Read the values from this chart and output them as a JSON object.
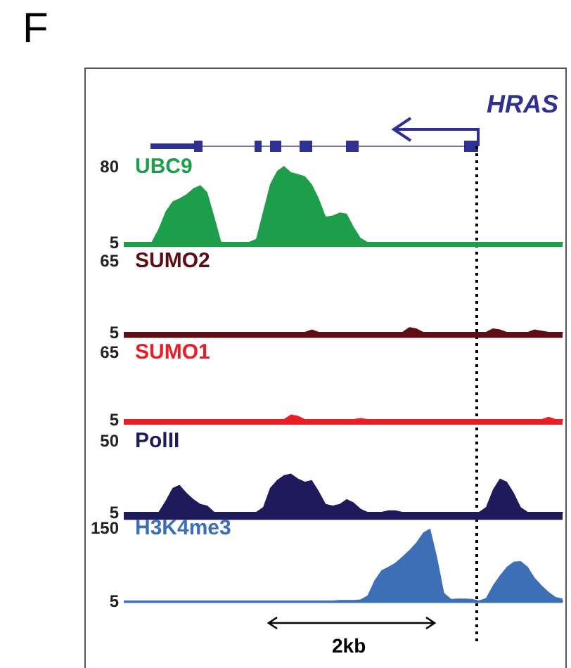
{
  "chart_data": [
    {
      "type": "area",
      "title": "UBC9",
      "color": "#1e9e4a",
      "ylim": [
        5,
        80
      ],
      "yticks": [
        5,
        80
      ],
      "tick_labels": "y",
      "annotations": [
        "F",
        "HRAS"
      ],
      "categories": [
        null,
        null,
        null,
        null,
        null,
        null,
        null,
        null,
        null,
        null,
        null,
        null,
        null,
        null,
        null,
        null,
        null,
        null,
        null,
        null,
        null,
        null,
        null,
        null,
        null,
        null,
        null,
        null,
        null,
        null,
        null,
        null,
        null,
        null,
        null,
        null,
        null,
        null,
        null,
        null,
        null,
        null,
        null,
        null,
        null,
        null,
        null,
        null,
        null,
        null,
        null,
        null,
        null,
        null,
        null,
        null,
        null,
        null,
        null,
        null,
        null,
        null,
        null,
        null
      ],
      "values": [
        5,
        5,
        5,
        5,
        5,
        18,
        35,
        45,
        48,
        52,
        58,
        61,
        54,
        30,
        5,
        5,
        5,
        5,
        5,
        8,
        35,
        62,
        75,
        80,
        74,
        72,
        70,
        62,
        48,
        30,
        31,
        34,
        33,
        20,
        9,
        5,
        5,
        5,
        5,
        5,
        5,
        5,
        5,
        5,
        5,
        5,
        5,
        5,
        5,
        5,
        5,
        5,
        5,
        5,
        5,
        5,
        5,
        5,
        5,
        5,
        5,
        5,
        5,
        5
      ]
    },
    {
      "type": "area",
      "title": "SUMO2",
      "color": "#5c0e13",
      "ylim": [
        5,
        65
      ],
      "yticks": [
        5,
        65
      ],
      "tick_labels": "y",
      "categories": [
        null,
        null,
        null,
        null,
        null,
        null,
        null,
        null,
        null,
        null,
        null,
        null,
        null,
        null,
        null,
        null,
        null,
        null,
        null,
        null,
        null,
        null,
        null,
        null,
        null,
        null,
        null,
        null,
        null,
        null,
        null,
        null,
        null,
        null,
        null,
        null,
        null,
        null,
        null,
        null,
        null,
        null,
        null,
        null,
        null,
        null,
        null,
        null,
        null,
        null,
        null,
        null,
        null,
        null,
        null,
        null,
        null,
        null,
        null,
        null,
        null,
        null,
        null,
        null
      ],
      "values": [
        5,
        5,
        5,
        5,
        5,
        5,
        5,
        5,
        5,
        5,
        5,
        5,
        5,
        5,
        5,
        5,
        5,
        5,
        5,
        5,
        5,
        5,
        5,
        5,
        5,
        5,
        5,
        7,
        5,
        5,
        5,
        5,
        5,
        5,
        5,
        5,
        5,
        5,
        5,
        5,
        5,
        9,
        8,
        5,
        5,
        5,
        5,
        5,
        5,
        5,
        5,
        5,
        5,
        8,
        7,
        5,
        5,
        5,
        5,
        7,
        6,
        5,
        5,
        5
      ]
    },
    {
      "type": "area",
      "title": "SUMO1",
      "color": "#ed1c24",
      "ylim": [
        5,
        65
      ],
      "yticks": [
        5,
        65
      ],
      "tick_labels": "y",
      "categories": [
        null,
        null,
        null,
        null,
        null,
        null,
        null,
        null,
        null,
        null,
        null,
        null,
        null,
        null,
        null,
        null,
        null,
        null,
        null,
        null,
        null,
        null,
        null,
        null,
        null,
        null,
        null,
        null,
        null,
        null,
        null,
        null,
        null,
        null,
        null,
        null,
        null,
        null,
        null,
        null,
        null,
        null,
        null,
        null,
        null,
        null,
        null,
        null,
        null,
        null,
        null,
        null,
        null,
        null,
        null,
        null,
        null,
        null,
        null,
        null,
        null,
        null,
        null,
        null
      ],
      "values": [
        5,
        5,
        5,
        5,
        5,
        5,
        5,
        5,
        5,
        5,
        5,
        5,
        5,
        5,
        5,
        5,
        5,
        5,
        5,
        5,
        5,
        5,
        5,
        5,
        9,
        8,
        5,
        5,
        5,
        5,
        5,
        5,
        5,
        5,
        6,
        5,
        5,
        5,
        5,
        5,
        5,
        5,
        5,
        5,
        5,
        5,
        5,
        5,
        5,
        5,
        5,
        5,
        5,
        5,
        5,
        5,
        5,
        5,
        5,
        5,
        5,
        7,
        5,
        5
      ]
    },
    {
      "type": "area",
      "title": "PolII",
      "color": "#1f1a5c",
      "ylim": [
        5,
        50
      ],
      "yticks": [
        5,
        50
      ],
      "tick_labels": "y",
      "categories": [
        null,
        null,
        null,
        null,
        null,
        null,
        null,
        null,
        null,
        null,
        null,
        null,
        null,
        null,
        null,
        null,
        null,
        null,
        null,
        null,
        null,
        null,
        null,
        null,
        null,
        null,
        null,
        null,
        null,
        null,
        null,
        null,
        null,
        null,
        null,
        null,
        null,
        null,
        null,
        null,
        null,
        null,
        null,
        null,
        null,
        null,
        null,
        null,
        null,
        null,
        null,
        null,
        null,
        null,
        null,
        null,
        null,
        null,
        null,
        null,
        null,
        null,
        null,
        null
      ],
      "values": [
        5,
        5,
        5,
        5,
        5,
        5,
        12,
        20,
        22,
        17,
        13,
        10,
        9,
        5,
        5,
        5,
        5,
        5,
        5,
        5,
        8,
        20,
        25,
        28,
        29,
        26,
        24,
        25,
        18,
        10,
        9,
        10,
        13,
        11,
        7,
        5,
        5,
        5,
        6,
        6,
        5,
        5,
        5,
        5,
        5,
        5,
        5,
        5,
        5,
        5,
        5,
        5,
        8,
        19,
        26,
        24,
        17,
        8,
        5,
        5,
        5,
        5,
        5,
        5
      ]
    },
    {
      "type": "area",
      "title": "H3K4me3",
      "color": "#3d6fb6",
      "ylim": [
        5,
        150
      ],
      "yticks": [
        5,
        150
      ],
      "tick_labels": "y",
      "annotations": [
        "2kb"
      ],
      "categories": [
        null,
        null,
        null,
        null,
        null,
        null,
        null,
        null,
        null,
        null,
        null,
        null,
        null,
        null,
        null,
        null,
        null,
        null,
        null,
        null,
        null,
        null,
        null,
        null,
        null,
        null,
        null,
        null,
        null,
        null,
        null,
        null,
        null,
        null,
        null,
        null,
        null,
        null,
        null,
        null,
        null,
        null,
        null,
        null,
        null,
        null,
        null,
        null,
        null,
        null,
        null,
        null,
        null,
        null,
        null,
        null,
        null,
        null,
        null,
        null,
        null,
        null,
        null,
        null
      ],
      "values": [
        5,
        5,
        5,
        5,
        5,
        5,
        5,
        5,
        5,
        5,
        5,
        5,
        5,
        5,
        5,
        5,
        5,
        5,
        5,
        5,
        5,
        5,
        5,
        5,
        5,
        5,
        5,
        5,
        5,
        5,
        5,
        6,
        6,
        6,
        7,
        15,
        45,
        65,
        72,
        80,
        92,
        105,
        120,
        140,
        148,
        90,
        20,
        8,
        9,
        9,
        8,
        5,
        10,
        35,
        55,
        72,
        82,
        83,
        72,
        50,
        35,
        22,
        12,
        9
      ]
    }
  ]
}
